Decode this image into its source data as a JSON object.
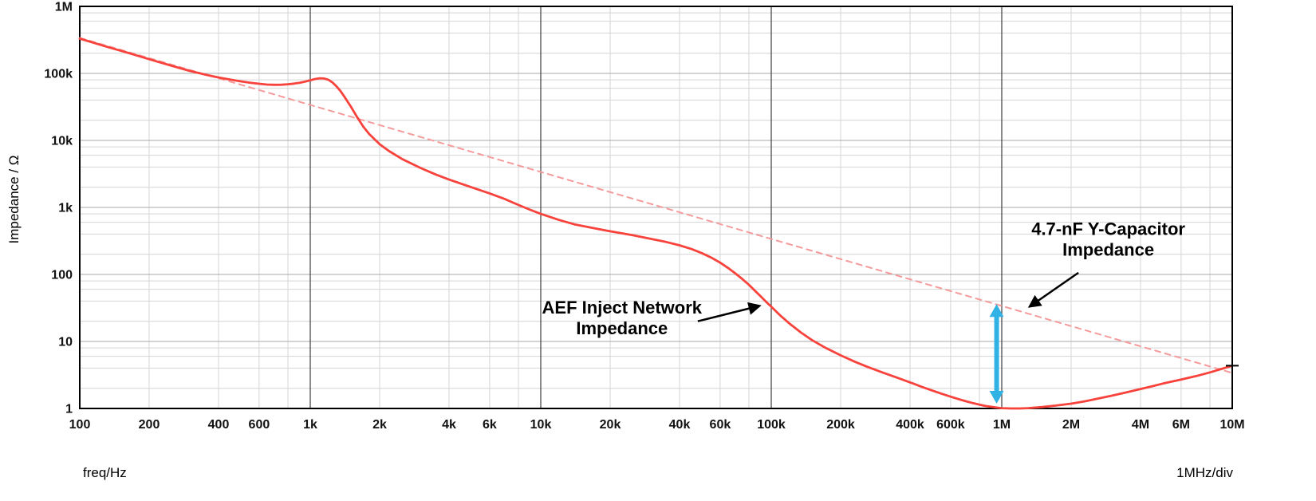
{
  "chart_data": {
    "type": "line",
    "title": "",
    "xlabel": "freq/Hz",
    "ylabel": "Impedance / Ω",
    "x_div_note": "1MHz/div",
    "xscale": "log",
    "yscale": "log",
    "xlim": [
      100,
      10000000
    ],
    "ylim": [
      1,
      1000000
    ],
    "grid": {
      "minor_multiples": [
        2,
        4,
        6,
        8
      ],
      "minor_color": "#d4d4d4",
      "major_h_color": "#aaaaaa",
      "major_v_color": "#3c3c3c",
      "frame_color": "#000000"
    },
    "x_ticks": [
      {
        "v": 100,
        "label": "100"
      },
      {
        "v": 200,
        "label": "200"
      },
      {
        "v": 400,
        "label": "400"
      },
      {
        "v": 600,
        "label": "600"
      },
      {
        "v": 1000,
        "label": "1k"
      },
      {
        "v": 2000,
        "label": "2k"
      },
      {
        "v": 4000,
        "label": "4k"
      },
      {
        "v": 6000,
        "label": "6k"
      },
      {
        "v": 10000,
        "label": "10k"
      },
      {
        "v": 20000,
        "label": "20k"
      },
      {
        "v": 40000,
        "label": "40k"
      },
      {
        "v": 60000,
        "label": "60k"
      },
      {
        "v": 100000,
        "label": "100k"
      },
      {
        "v": 200000,
        "label": "200k"
      },
      {
        "v": 400000,
        "label": "400k"
      },
      {
        "v": 600000,
        "label": "600k"
      },
      {
        "v": 1000000,
        "label": "1M"
      },
      {
        "v": 2000000,
        "label": "2M"
      },
      {
        "v": 4000000,
        "label": "4M"
      },
      {
        "v": 6000000,
        "label": "6M"
      },
      {
        "v": 10000000,
        "label": "10M"
      }
    ],
    "y_ticks": [
      {
        "v": 1,
        "label": "1"
      },
      {
        "v": 10,
        "label": "10"
      },
      {
        "v": 100,
        "label": "100"
      },
      {
        "v": 1000,
        "label": "1k"
      },
      {
        "v": 10000,
        "label": "10k"
      },
      {
        "v": 100000,
        "label": "100k"
      },
      {
        "v": 1000000,
        "label": "1M"
      }
    ],
    "series": [
      {
        "id": "aef-impedance-curve",
        "name": "AEF Inject Network Impedance",
        "color": "#f8423c",
        "style": "solid",
        "width": 2.8,
        "points": [
          [
            100,
            330000
          ],
          [
            130,
            252000
          ],
          [
            160,
            205000
          ],
          [
            200,
            163000
          ],
          [
            250,
            130000
          ],
          [
            300,
            109000
          ],
          [
            350,
            96000
          ],
          [
            400,
            87000
          ],
          [
            450,
            81000
          ],
          [
            500,
            76000
          ],
          [
            550,
            72500
          ],
          [
            600,
            70000
          ],
          [
            650,
            68200
          ],
          [
            700,
            67500
          ],
          [
            750,
            67800
          ],
          [
            800,
            68800
          ],
          [
            850,
            70500
          ],
          [
            900,
            72500
          ],
          [
            950,
            75500
          ],
          [
            1000,
            79000
          ],
          [
            1050,
            82500
          ],
          [
            1100,
            84500
          ],
          [
            1150,
            84000
          ],
          [
            1200,
            80000
          ],
          [
            1250,
            73000
          ],
          [
            1300,
            64000
          ],
          [
            1350,
            55000
          ],
          [
            1400,
            46000
          ],
          [
            1500,
            32000
          ],
          [
            1600,
            22000
          ],
          [
            1700,
            16000
          ],
          [
            1800,
            12500
          ],
          [
            2000,
            8800
          ],
          [
            2200,
            6900
          ],
          [
            2500,
            5300
          ],
          [
            3000,
            3900
          ],
          [
            3500,
            3100
          ],
          [
            4000,
            2600
          ],
          [
            5000,
            2000
          ],
          [
            6000,
            1620
          ],
          [
            7000,
            1330
          ],
          [
            8000,
            1090
          ],
          [
            9000,
            920
          ],
          [
            10000,
            800
          ],
          [
            12000,
            650
          ],
          [
            14000,
            560
          ],
          [
            17000,
            490
          ],
          [
            20000,
            440
          ],
          [
            25000,
            385
          ],
          [
            30000,
            340
          ],
          [
            35000,
            305
          ],
          [
            40000,
            272
          ],
          [
            45000,
            240
          ],
          [
            50000,
            208
          ],
          [
            55000,
            178
          ],
          [
            60000,
            150
          ],
          [
            65000,
            125
          ],
          [
            70000,
            103
          ],
          [
            75000,
            85
          ],
          [
            80000,
            70
          ],
          [
            85000,
            57
          ],
          [
            90000,
            47
          ],
          [
            95000,
            39
          ],
          [
            100000,
            33
          ],
          [
            110000,
            24
          ],
          [
            120000,
            18.5
          ],
          [
            135000,
            13.5
          ],
          [
            150000,
            10.5
          ],
          [
            170000,
            8.2
          ],
          [
            200000,
            6.2
          ],
          [
            230000,
            5.0
          ],
          [
            260000,
            4.2
          ],
          [
            300000,
            3.5
          ],
          [
            350000,
            2.9
          ],
          [
            400000,
            2.45
          ],
          [
            450000,
            2.1
          ],
          [
            500000,
            1.85
          ],
          [
            550000,
            1.65
          ],
          [
            600000,
            1.5
          ],
          [
            650000,
            1.38
          ],
          [
            700000,
            1.28
          ],
          [
            750000,
            1.2
          ],
          [
            800000,
            1.14
          ],
          [
            850000,
            1.09
          ],
          [
            900000,
            1.06
          ],
          [
            950000,
            1.03
          ],
          [
            1000000,
            1.01
          ],
          [
            1100000,
            1.0
          ],
          [
            1200000,
            1.0
          ],
          [
            1300000,
            1.01
          ],
          [
            1500000,
            1.05
          ],
          [
            1700000,
            1.1
          ],
          [
            2000000,
            1.18
          ],
          [
            2300000,
            1.28
          ],
          [
            2600000,
            1.4
          ],
          [
            3000000,
            1.55
          ],
          [
            3500000,
            1.75
          ],
          [
            4000000,
            1.95
          ],
          [
            4500000,
            2.15
          ],
          [
            5000000,
            2.35
          ],
          [
            6000000,
            2.7
          ],
          [
            7000000,
            3.05
          ],
          [
            8000000,
            3.45
          ],
          [
            9000000,
            3.9
          ],
          [
            10000000,
            4.35
          ]
        ]
      },
      {
        "id": "ycap-impedance-line",
        "name": "4.7-nF Y-Capacitor Impedance",
        "color": "#f59b9b",
        "style": "dashed",
        "width": 2,
        "points": [
          [
            100,
            338600
          ],
          [
            10000000,
            3.386
          ]
        ]
      }
    ],
    "end_marker": {
      "shape": "plus",
      "x": 10000000,
      "y": 4.35,
      "color": "#000000"
    },
    "gap_arrow": {
      "x": 950000,
      "y_top": 36,
      "y_bottom": 1.18,
      "color": "#31b2e4"
    },
    "annotations": [
      {
        "id": "aef-network-label",
        "lines": [
          "AEF Inject Network",
          "Impedance"
        ],
        "x": 22500,
        "y": 22,
        "arrow": {
          "x1": 48000,
          "y1": 20,
          "x2": 89000,
          "y2": 34
        }
      },
      {
        "id": "ycap-label",
        "lines": [
          "4.7-nF Y-Capacitor",
          "Impedance"
        ],
        "x": 2900000,
        "y": 330,
        "arrow": {
          "x1": 2150000,
          "y1": 106,
          "x2": 1320000,
          "y2": 33
        }
      }
    ]
  }
}
